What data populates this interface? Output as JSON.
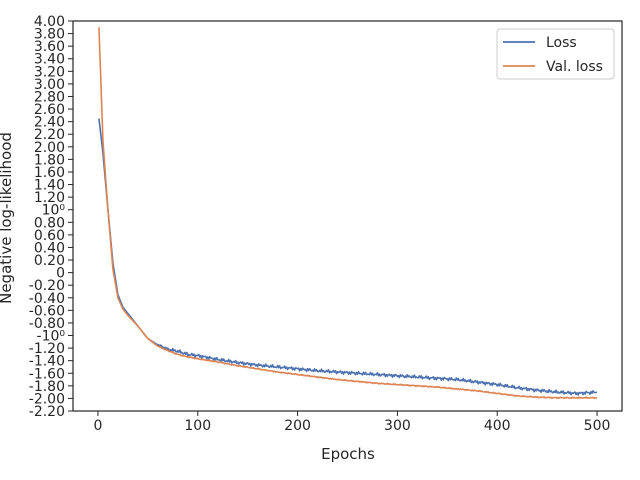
{
  "chart_data": {
    "type": "line",
    "title": "",
    "xlabel": "Epochs",
    "ylabel": "Negative log-likelihood",
    "xlim": [
      -25,
      525
    ],
    "ylim": [
      -2.2,
      4.0
    ],
    "xticks": [
      0,
      100,
      200,
      300,
      400,
      500
    ],
    "xtick_labels": [
      "0",
      "100",
      "200",
      "300",
      "400",
      "500"
    ],
    "yticks": [
      -2.2,
      -2.0,
      -1.8,
      -1.6,
      -1.4,
      -1.2,
      -1.0,
      -0.8,
      -0.6,
      -0.4,
      -0.2,
      0,
      0.2,
      0.4,
      0.6,
      0.8,
      1.0,
      1.2,
      1.4,
      1.6,
      1.8,
      2.0,
      2.2,
      2.4,
      2.6,
      2.8,
      3.0,
      3.2,
      3.4,
      3.6,
      3.8,
      4.0
    ],
    "ytick_labels": [
      "-2.20",
      "-2.00",
      "-1.80",
      "-1.60",
      "-1.40",
      "-1.20",
      "-10⁰",
      "-0.80",
      "-0.60",
      "-0.40",
      "-0.20",
      "0",
      "0.20",
      "0.40",
      "0.60",
      "0.80",
      "10⁰",
      "1.20",
      "1.40",
      "1.60",
      "1.80",
      "2.00",
      "2.20",
      "2.40",
      "2.60",
      "2.80",
      "3.00",
      "3.20",
      "3.40",
      "3.60",
      "3.80",
      "4.00"
    ],
    "grid": false,
    "legend_position": "top-right",
    "series": [
      {
        "name": "Loss",
        "color": "#4c72b0",
        "x": [
          1,
          5,
          10,
          15,
          20,
          25,
          30,
          40,
          50,
          60,
          70,
          80,
          90,
          100,
          120,
          140,
          160,
          180,
          200,
          220,
          240,
          260,
          280,
          300,
          320,
          340,
          360,
          380,
          400,
          420,
          440,
          460,
          480,
          500
        ],
        "y": [
          2.45,
          1.9,
          1.0,
          0.15,
          -0.35,
          -0.55,
          -0.65,
          -0.85,
          -1.05,
          -1.15,
          -1.22,
          -1.25,
          -1.3,
          -1.32,
          -1.38,
          -1.43,
          -1.47,
          -1.5,
          -1.53,
          -1.56,
          -1.58,
          -1.6,
          -1.62,
          -1.64,
          -1.66,
          -1.68,
          -1.7,
          -1.74,
          -1.78,
          -1.83,
          -1.87,
          -1.9,
          -1.92,
          -1.9
        ]
      },
      {
        "name": "Val. loss",
        "color": "#dd8452",
        "x": [
          1,
          5,
          10,
          15,
          20,
          25,
          30,
          40,
          50,
          60,
          70,
          80,
          90,
          100,
          120,
          140,
          160,
          180,
          200,
          220,
          240,
          260,
          280,
          300,
          320,
          340,
          360,
          380,
          400,
          420,
          440,
          460,
          480,
          500
        ],
        "y": [
          3.9,
          2.1,
          1.0,
          0.05,
          -0.4,
          -0.58,
          -0.68,
          -0.85,
          -1.05,
          -1.17,
          -1.24,
          -1.3,
          -1.34,
          -1.37,
          -1.42,
          -1.48,
          -1.53,
          -1.58,
          -1.62,
          -1.66,
          -1.7,
          -1.73,
          -1.76,
          -1.78,
          -1.8,
          -1.82,
          -1.85,
          -1.88,
          -1.92,
          -1.96,
          -1.98,
          -1.99,
          -1.99,
          -1.99
        ]
      }
    ]
  }
}
